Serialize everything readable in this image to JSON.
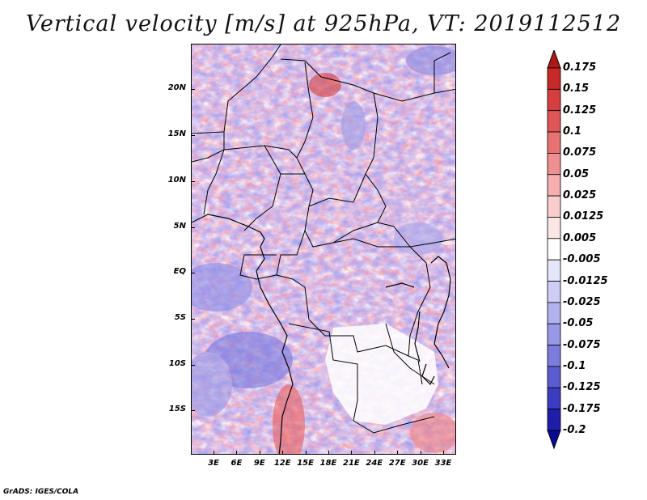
{
  "title": "Vertical velocity [m/s] at 925hPa, VT: 2019112512",
  "credit": "GrADS: IGES/COLA",
  "lat_labels": [
    "20N",
    "15N",
    "10N",
    "5N",
    "EQ",
    "5S",
    "10S",
    "15S"
  ],
  "lon_labels": [
    "3E",
    "6E",
    "9E",
    "12E",
    "15E",
    "18E",
    "21E",
    "24E",
    "27E",
    "30E",
    "33E"
  ],
  "colorbar": {
    "levels": [
      "0.175",
      "0.15",
      "0.125",
      "0.1",
      "0.075",
      "0.05",
      "0.025",
      "0.0125",
      "0.005",
      "-0.005",
      "-0.0125",
      "-0.025",
      "-0.05",
      "-0.075",
      "-0.1",
      "-0.125",
      "-0.175",
      "-0.2"
    ],
    "colors": [
      "#b01818",
      "#c72828",
      "#d53e3e",
      "#e05656",
      "#e87272",
      "#ef9090",
      "#f5afaf",
      "#f9cdcd",
      "#fbe6e6",
      "#ffffff",
      "#e6e6fb",
      "#cdcdf5",
      "#b2b2ef",
      "#9898e6",
      "#7c7cdd",
      "#5c5cd0",
      "#3c3cc0",
      "#1e1eaa",
      "#0a0a90"
    ]
  }
}
